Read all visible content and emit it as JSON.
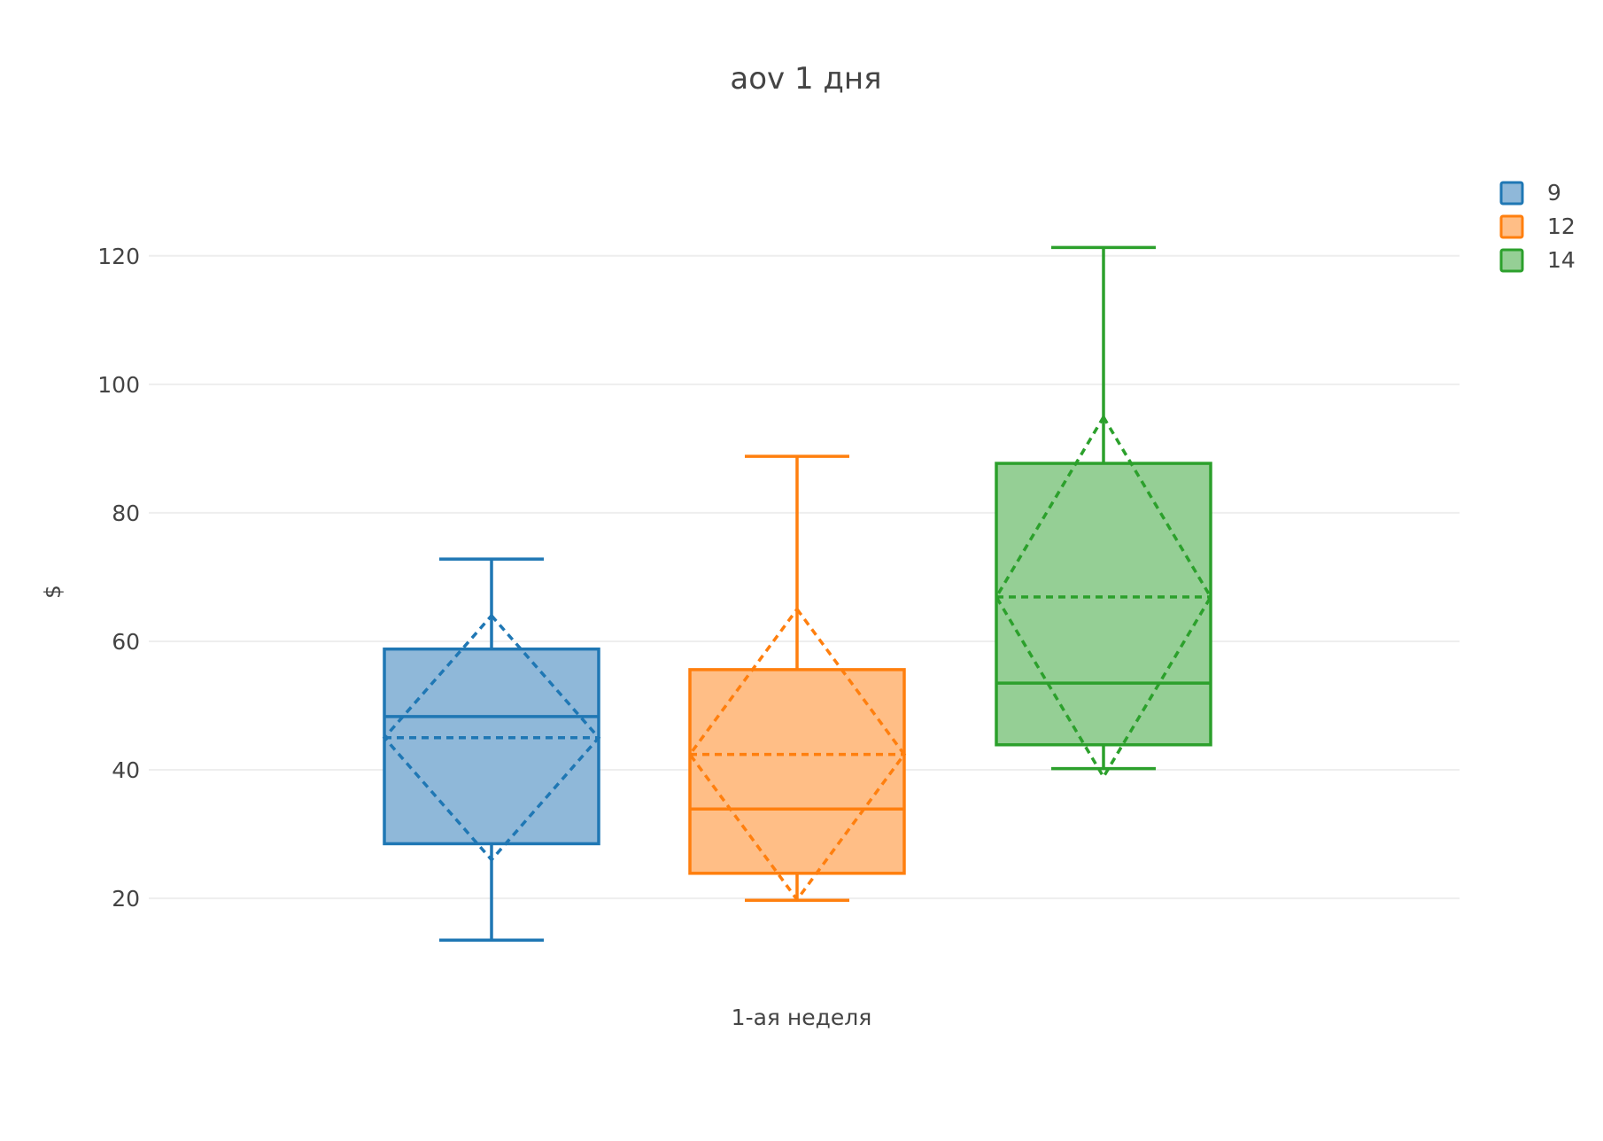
{
  "chart_data": {
    "type": "box",
    "title": "aov 1 дня",
    "xlabel": "1-ая неделя",
    "ylabel": "$",
    "ylim": [
      6.5,
      135
    ],
    "yticks": [
      20,
      40,
      60,
      80,
      100,
      120
    ],
    "grid": true,
    "legend_position": "top-right",
    "series": [
      {
        "name": "9",
        "color": "#1f77b4",
        "fill": "#8fb8d9",
        "lowerfence": 13.5,
        "q1": 28.5,
        "median": 48.3,
        "q3": 58.8,
        "upperfence": 72.8,
        "mean": 45.0,
        "sd": 19.0
      },
      {
        "name": "12",
        "color": "#ff7f0e",
        "fill": "#ffbe86",
        "lowerfence": 19.7,
        "q1": 23.9,
        "median": 33.9,
        "q3": 55.6,
        "upperfence": 88.8,
        "mean": 42.4,
        "sd": 22.6
      },
      {
        "name": "14",
        "color": "#2ca02c",
        "fill": "#95cf95",
        "lowerfence": 40.2,
        "q1": 43.9,
        "median": 53.5,
        "q3": 87.7,
        "upperfence": 121.3,
        "mean": 66.9,
        "sd": 28.0
      }
    ]
  }
}
